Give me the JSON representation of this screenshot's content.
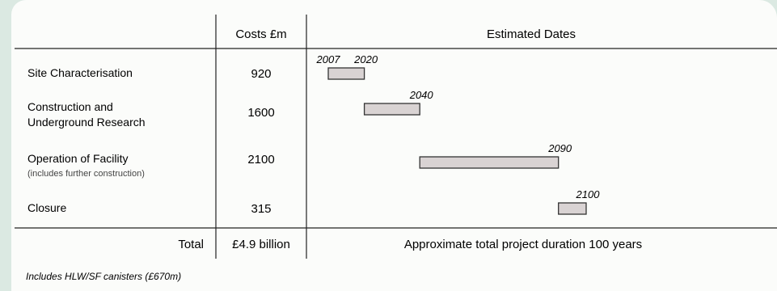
{
  "headers": {
    "costs": "Costs £m",
    "dates": "Estimated Dates"
  },
  "phases": [
    {
      "label": [
        "Site Characterisation"
      ],
      "sublabel": "",
      "cost": "920",
      "start": 2007,
      "end": 2020,
      "end_label": "2020",
      "start_label": "2007"
    },
    {
      "label": [
        "Construction and",
        "Underground Research"
      ],
      "sublabel": "",
      "cost": "1600",
      "start": 2020,
      "end": 2040,
      "end_label": "2040",
      "start_label": ""
    },
    {
      "label": [
        "Operation of Facility"
      ],
      "sublabel": "(includes further construction)",
      "cost": "2100",
      "start": 2040,
      "end": 2090,
      "end_label": "2090",
      "start_label": ""
    },
    {
      "label": [
        "Closure"
      ],
      "sublabel": "",
      "cost": "315",
      "start": 2090,
      "end": 2100,
      "end_label": "2100",
      "start_label": ""
    }
  ],
  "total": {
    "label": "Total",
    "cost": "£4.9 billion",
    "duration": "Approximate total project duration 100 years"
  },
  "footnote": "Includes HLW/SF canisters (£670m)",
  "chart_data": {
    "type": "table",
    "columns": [
      "",
      "Costs £m",
      "Estimated Dates"
    ],
    "rows": [
      {
        "phase": "Site Characterisation",
        "cost": 920,
        "start": 2007,
        "end": 2020
      },
      {
        "phase": "Construction and Underground Research",
        "cost": 1600,
        "start": 2020,
        "end": 2040
      },
      {
        "phase": "Operation of Facility (includes further construction)",
        "cost": 2100,
        "start": 2040,
        "end": 2090
      },
      {
        "phase": "Closure",
        "cost": 315,
        "start": 2090,
        "end": 2100
      }
    ],
    "total": {
      "cost": "£4.9 billion",
      "duration": "Approximate total project duration 100 years"
    }
  },
  "colors": {
    "bar_fill": "#d9d3d3",
    "bar_stroke": "#333333",
    "background": "#dbe9e2",
    "panel": "#fbfcfa"
  }
}
